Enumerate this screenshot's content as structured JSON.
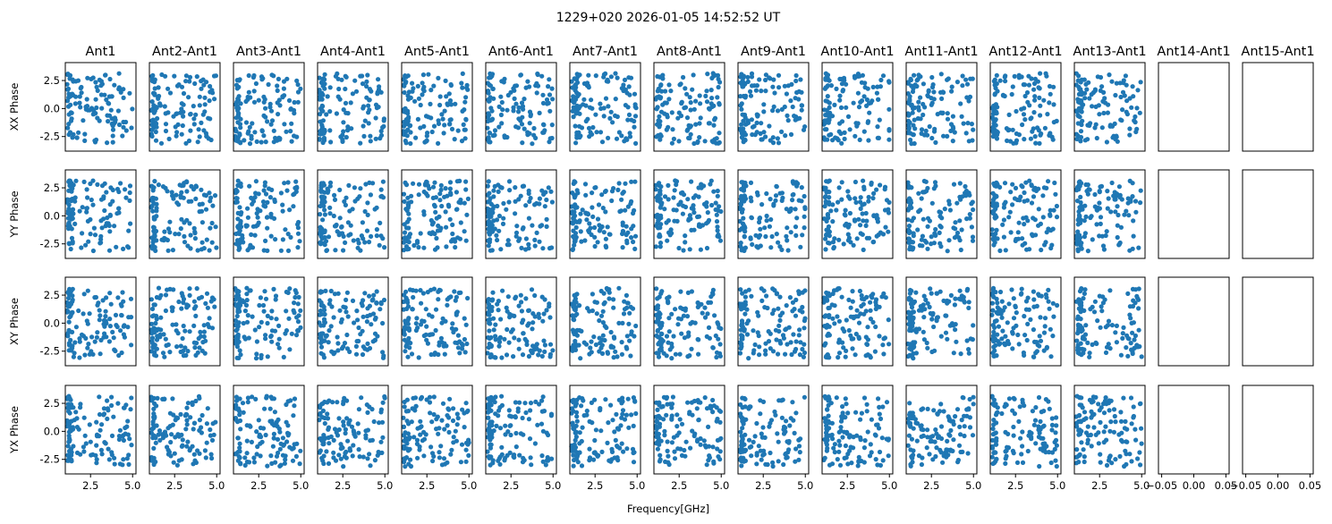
{
  "chart_data": {
    "type": "scatter",
    "title": "1229+020 2026-01-05 14:52:52 UT",
    "xlabel": "Frequency[GHz]",
    "columns": [
      "Ant1",
      "Ant2-Ant1",
      "Ant3-Ant1",
      "Ant4-Ant1",
      "Ant5-Ant1",
      "Ant6-Ant1",
      "Ant7-Ant1",
      "Ant8-Ant1",
      "Ant9-Ant1",
      "Ant10-Ant1",
      "Ant11-Ant1",
      "Ant12-Ant1",
      "Ant13-Ant1",
      "Ant14-Ant1",
      "Ant15-Ant1"
    ],
    "rows": [
      "XX Phase",
      "YY Phase",
      "XY Phase",
      "YX Phase"
    ],
    "xlim": [
      1.0,
      5.2
    ],
    "ylim": [
      -3.8,
      4.1
    ],
    "xticks": [
      2.5,
      5.0
    ],
    "xtick_labels": [
      "2.5",
      "5.0"
    ],
    "yticks": [
      2.5,
      0.0,
      -2.5
    ],
    "ytick_labels": [
      "2.5",
      "0.0",
      "-2.5"
    ],
    "empty_xticks": [
      -0.05,
      0.0,
      0.05
    ],
    "empty_xtick_labels": [
      "−0.05",
      "0.00",
      "0.05"
    ],
    "empty_columns": [
      "Ant14-Ant1",
      "Ant15-Ant1"
    ],
    "points_per_panel": 120,
    "freq_range_ghz": [
      1.1,
      5.0
    ],
    "phase_range_rad": [
      -3.14,
      3.14
    ],
    "marker_color": "#1f77b4",
    "grid": false,
    "legend": "none"
  }
}
